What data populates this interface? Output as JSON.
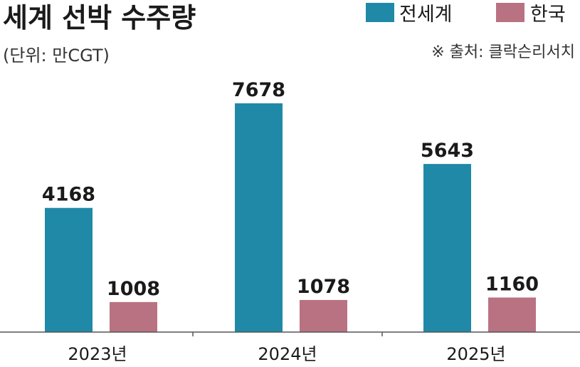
{
  "chart_data": {
    "type": "bar",
    "title": "세계 선박 수주량",
    "subtitle": "(단위: 만CGT)",
    "source": "※ 출처: 클락슨리서치",
    "categories": [
      "2023년",
      "2024년",
      "2025년"
    ],
    "series": [
      {
        "name": "전세계",
        "values": [
          4168,
          7678,
          5643
        ],
        "color": "#2089a7"
      },
      {
        "name": "한국",
        "values": [
          1008,
          1078,
          1160
        ],
        "color": "#b97282"
      }
    ],
    "ylim": [
      0,
      8000
    ],
    "grid": false,
    "legend_position": "top-right",
    "xlabel": "",
    "ylabel": ""
  }
}
